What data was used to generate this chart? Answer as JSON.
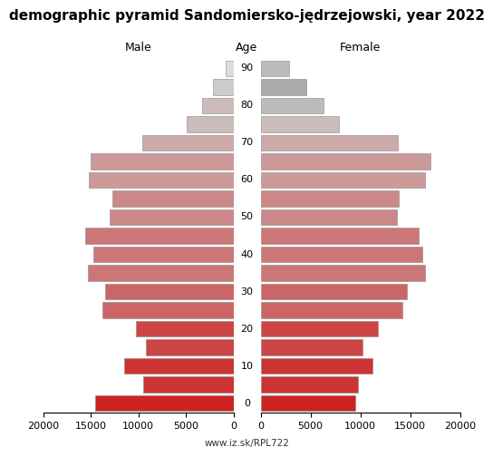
{
  "title": "demographic pyramid Sandomiersko-jędrzejowski, year 2022",
  "male_label": "Male",
  "female_label": "Female",
  "age_label": "Age",
  "url": "www.iz.sk/RPL722",
  "age_groups": [
    0,
    5,
    10,
    15,
    20,
    25,
    30,
    35,
    40,
    45,
    50,
    55,
    60,
    65,
    70,
    75,
    80,
    85,
    90
  ],
  "male_values": [
    14500,
    9500,
    11500,
    9200,
    10200,
    13800,
    13500,
    15300,
    14700,
    15600,
    13000,
    12700,
    15200,
    15000,
    9600,
    4900,
    3300,
    2100,
    800
  ],
  "female_values": [
    9500,
    9800,
    11200,
    10200,
    11800,
    14200,
    14700,
    16500,
    16200,
    15900,
    13700,
    13900,
    16500,
    17000,
    13800,
    7900,
    6300,
    4600,
    2900
  ],
  "xlim": 20000,
  "male_colors": [
    "#cc2222",
    "#cc3333",
    "#cc3333",
    "#cc4444",
    "#cc4444",
    "#cc6666",
    "#cc6666",
    "#cc7777",
    "#cc7777",
    "#cc7777",
    "#cc8888",
    "#cc8888",
    "#cc9999",
    "#cc9999",
    "#ccaaaa",
    "#ccbbbb",
    "#ccbbbb",
    "#cccccc",
    "#dddddd"
  ],
  "female_colors": [
    "#cc2222",
    "#cc3333",
    "#cc3333",
    "#cc4444",
    "#cc4444",
    "#cc6666",
    "#cc6666",
    "#cc7777",
    "#cc7777",
    "#cc7777",
    "#cc8888",
    "#cc8888",
    "#cc9999",
    "#cc9999",
    "#ccaaaa",
    "#ccbbbb",
    "#bbbbbb",
    "#aaaaaa",
    "#bbbbbb"
  ],
  "background_color": "#ffffff",
  "bar_height": 0.85,
  "title_fontsize": 11,
  "label_fontsize": 9,
  "tick_fontsize": 8,
  "age_label_fontsize": 8
}
